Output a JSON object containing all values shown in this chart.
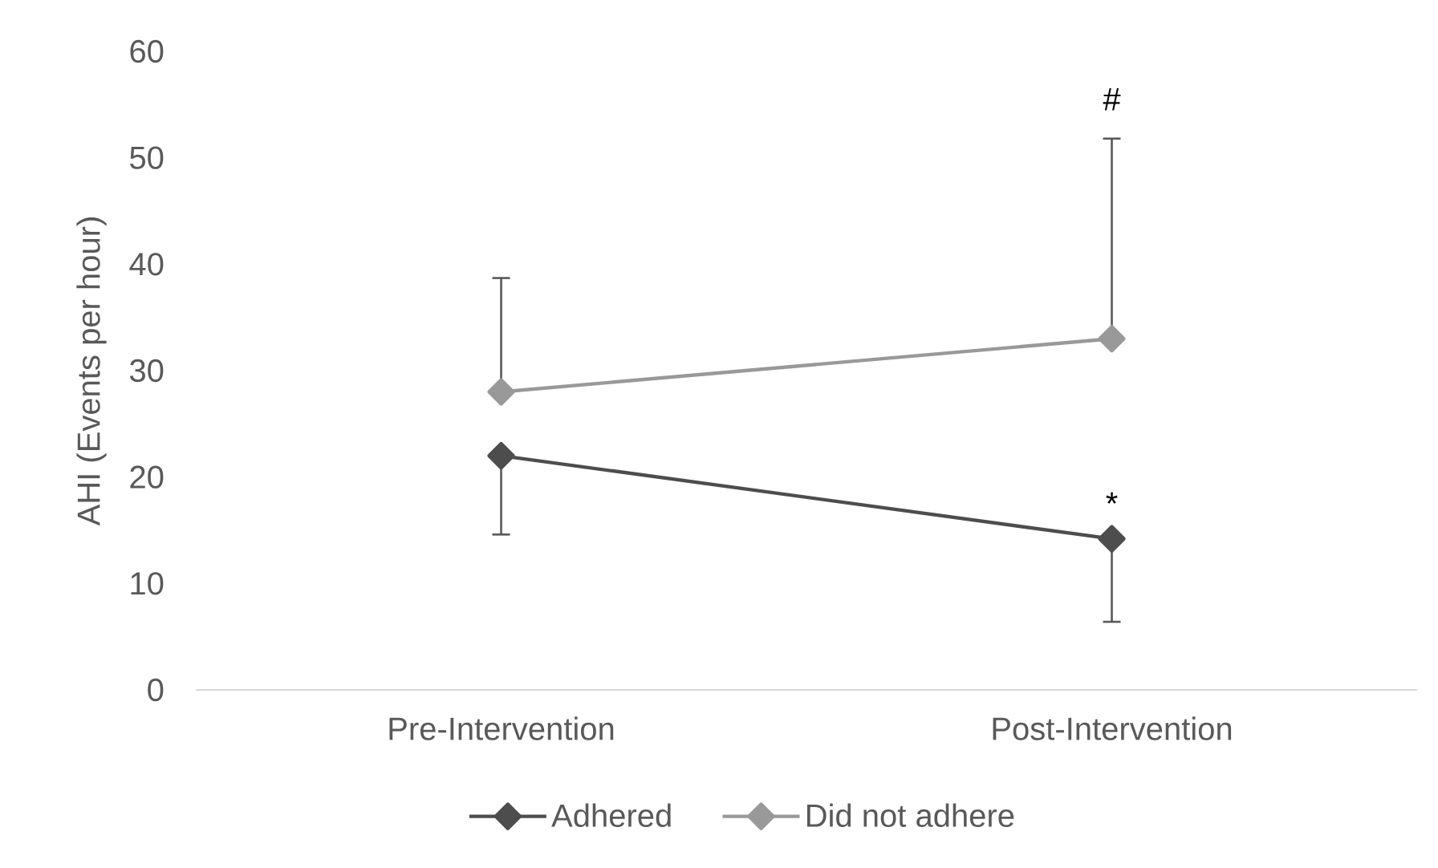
{
  "chart_data": {
    "type": "line",
    "ylabel": "AHI (Events per hour)",
    "categories": [
      "Pre-Intervention",
      "Post-Intervention"
    ],
    "series": [
      {
        "name": "Adhered",
        "color": "#4d4d4d",
        "values": [
          22,
          14.2
        ],
        "errors": [
          [
            14.6,
            22
          ],
          [
            6.4,
            14.2
          ]
        ]
      },
      {
        "name": "Did not adhere",
        "color": "#999999",
        "values": [
          28,
          33
        ],
        "errors": [
          [
            28,
            38.7
          ],
          [
            33,
            51.8
          ]
        ]
      }
    ],
    "ylim": [
      0,
      60
    ],
    "yticks": [
      0,
      10,
      20,
      30,
      40,
      50,
      60
    ],
    "legend": "bottom",
    "marker": "diamond",
    "annotations": [
      "#",
      "*"
    ]
  }
}
